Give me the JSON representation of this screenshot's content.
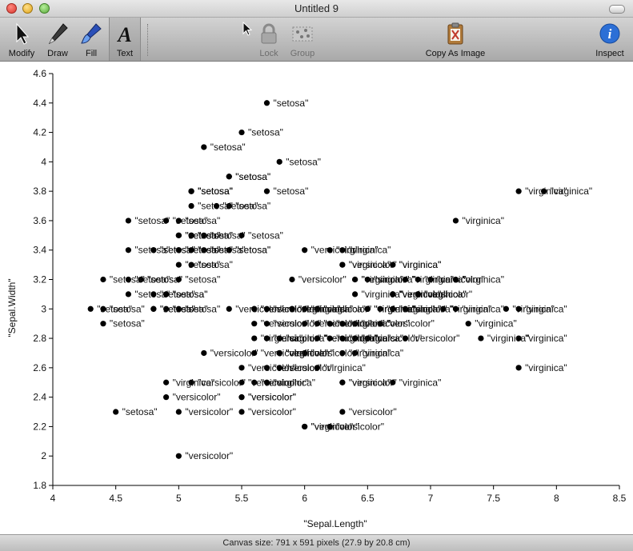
{
  "window": {
    "title": "Untitled 9"
  },
  "toolbar": {
    "modify": "Modify",
    "draw": "Draw",
    "fill": "Fill",
    "text": "Text",
    "lock": "Lock",
    "group": "Group",
    "copy_as_image": "Copy As Image",
    "inspect": "Inspect"
  },
  "status": {
    "canvas_size": "Canvas size: 791 x 591 pixels (27.9 by 20.8 cm)"
  },
  "colors": {
    "accent": "#2c6fd6",
    "marker": "#000000",
    "toolbar_top": "#d3d3d3",
    "toolbar_bottom": "#a9a9a9"
  },
  "chart_data": {
    "type": "scatter",
    "xlabel": "\"Sepal.Length\"",
    "ylabel": "\"Sepal.Width\"",
    "xlim": [
      4,
      8.5
    ],
    "ylim": [
      1.8,
      4.6
    ],
    "xticks": [
      4,
      4.5,
      5,
      5.5,
      6,
      6.5,
      7,
      7.5,
      8,
      8.5
    ],
    "yticks": [
      1.8,
      2,
      2.2,
      2.4,
      2.6,
      2.8,
      3,
      3.2,
      3.4,
      3.6,
      3.8,
      4,
      4.2,
      4.4,
      4.6
    ],
    "grid": false,
    "series": [
      {
        "name": "\"setosa\"",
        "points": [
          [
            5.1,
            3.5
          ],
          [
            4.9,
            3.0
          ],
          [
            4.7,
            3.2
          ],
          [
            4.6,
            3.1
          ],
          [
            5.0,
            3.6
          ],
          [
            5.4,
            3.9
          ],
          [
            4.6,
            3.4
          ],
          [
            5.0,
            3.4
          ],
          [
            4.4,
            2.9
          ],
          [
            4.9,
            3.1
          ],
          [
            5.4,
            3.7
          ],
          [
            4.8,
            3.4
          ],
          [
            4.8,
            3.0
          ],
          [
            4.3,
            3.0
          ],
          [
            5.8,
            4.0
          ],
          [
            5.7,
            4.4
          ],
          [
            5.4,
            3.9
          ],
          [
            5.1,
            3.5
          ],
          [
            5.7,
            3.8
          ],
          [
            5.1,
            3.8
          ],
          [
            5.4,
            3.4
          ],
          [
            5.1,
            3.7
          ],
          [
            4.6,
            3.6
          ],
          [
            5.1,
            3.3
          ],
          [
            4.8,
            3.4
          ],
          [
            5.0,
            3.0
          ],
          [
            5.0,
            3.4
          ],
          [
            5.2,
            3.5
          ],
          [
            5.2,
            3.4
          ],
          [
            4.7,
            3.2
          ],
          [
            4.8,
            3.1
          ],
          [
            5.4,
            3.4
          ],
          [
            5.2,
            4.1
          ],
          [
            5.5,
            4.2
          ],
          [
            4.9,
            3.1
          ],
          [
            5.0,
            3.2
          ],
          [
            5.5,
            3.5
          ],
          [
            4.9,
            3.6
          ],
          [
            4.4,
            3.0
          ],
          [
            5.1,
            3.4
          ],
          [
            5.0,
            3.5
          ],
          [
            4.5,
            2.3
          ],
          [
            4.4,
            3.2
          ],
          [
            5.0,
            3.5
          ],
          [
            5.1,
            3.8
          ],
          [
            4.8,
            3.0
          ],
          [
            5.1,
            3.8
          ],
          [
            4.6,
            3.2
          ],
          [
            5.3,
            3.7
          ],
          [
            5.0,
            3.3
          ]
        ]
      },
      {
        "name": "\"versicolor\"",
        "points": [
          [
            7.0,
            3.2
          ],
          [
            6.4,
            3.2
          ],
          [
            6.9,
            3.1
          ],
          [
            5.5,
            2.3
          ],
          [
            6.5,
            2.8
          ],
          [
            5.7,
            2.8
          ],
          [
            6.3,
            3.3
          ],
          [
            4.9,
            2.4
          ],
          [
            6.6,
            2.9
          ],
          [
            5.2,
            2.7
          ],
          [
            5.0,
            2.0
          ],
          [
            5.9,
            3.0
          ],
          [
            6.0,
            2.2
          ],
          [
            6.1,
            2.9
          ],
          [
            5.6,
            2.9
          ],
          [
            6.7,
            3.1
          ],
          [
            5.6,
            3.0
          ],
          [
            5.8,
            2.7
          ],
          [
            6.2,
            2.2
          ],
          [
            5.6,
            2.5
          ],
          [
            5.9,
            3.2
          ],
          [
            6.1,
            2.8
          ],
          [
            6.3,
            2.5
          ],
          [
            6.1,
            2.8
          ],
          [
            6.4,
            2.9
          ],
          [
            6.6,
            3.0
          ],
          [
            6.8,
            2.8
          ],
          [
            6.7,
            3.0
          ],
          [
            6.0,
            2.9
          ],
          [
            5.7,
            2.6
          ],
          [
            5.5,
            2.4
          ],
          [
            5.5,
            2.4
          ],
          [
            5.8,
            2.7
          ],
          [
            6.0,
            2.7
          ],
          [
            5.4,
            3.0
          ],
          [
            6.0,
            3.4
          ],
          [
            6.7,
            3.1
          ],
          [
            6.3,
            2.3
          ],
          [
            5.6,
            3.0
          ],
          [
            5.5,
            2.5
          ],
          [
            5.5,
            2.6
          ],
          [
            6.1,
            3.0
          ],
          [
            5.8,
            2.6
          ],
          [
            5.0,
            2.3
          ],
          [
            5.6,
            2.7
          ],
          [
            5.7,
            3.0
          ],
          [
            5.7,
            2.9
          ],
          [
            6.2,
            2.9
          ],
          [
            5.1,
            2.5
          ],
          [
            5.7,
            2.8
          ]
        ]
      },
      {
        "name": "\"virginica\"",
        "points": [
          [
            6.3,
            3.3
          ],
          [
            5.8,
            2.7
          ],
          [
            7.1,
            3.0
          ],
          [
            6.3,
            2.9
          ],
          [
            6.5,
            3.0
          ],
          [
            7.6,
            3.0
          ],
          [
            4.9,
            2.5
          ],
          [
            7.3,
            2.9
          ],
          [
            6.7,
            2.5
          ],
          [
            7.2,
            3.6
          ],
          [
            6.5,
            3.2
          ],
          [
            6.4,
            2.7
          ],
          [
            6.8,
            3.0
          ],
          [
            5.7,
            2.5
          ],
          [
            5.8,
            2.8
          ],
          [
            6.4,
            3.2
          ],
          [
            6.5,
            3.0
          ],
          [
            7.7,
            3.8
          ],
          [
            7.7,
            2.6
          ],
          [
            6.0,
            2.2
          ],
          [
            6.9,
            3.2
          ],
          [
            5.6,
            2.8
          ],
          [
            7.7,
            2.8
          ],
          [
            6.3,
            2.7
          ],
          [
            6.7,
            3.3
          ],
          [
            7.2,
            3.2
          ],
          [
            6.2,
            2.8
          ],
          [
            6.1,
            3.0
          ],
          [
            6.4,
            2.8
          ],
          [
            7.2,
            3.0
          ],
          [
            7.4,
            2.8
          ],
          [
            7.9,
            3.8
          ],
          [
            6.4,
            2.8
          ],
          [
            6.3,
            2.8
          ],
          [
            6.1,
            2.6
          ],
          [
            7.7,
            3.0
          ],
          [
            6.3,
            3.4
          ],
          [
            6.4,
            3.1
          ],
          [
            6.0,
            3.0
          ],
          [
            6.9,
            3.1
          ],
          [
            6.7,
            3.1
          ],
          [
            6.9,
            3.1
          ],
          [
            5.8,
            2.7
          ],
          [
            6.8,
            3.2
          ],
          [
            6.7,
            3.3
          ],
          [
            6.7,
            3.0
          ],
          [
            6.3,
            2.5
          ],
          [
            6.5,
            3.0
          ],
          [
            6.2,
            3.4
          ],
          [
            5.9,
            3.0
          ]
        ]
      }
    ]
  }
}
